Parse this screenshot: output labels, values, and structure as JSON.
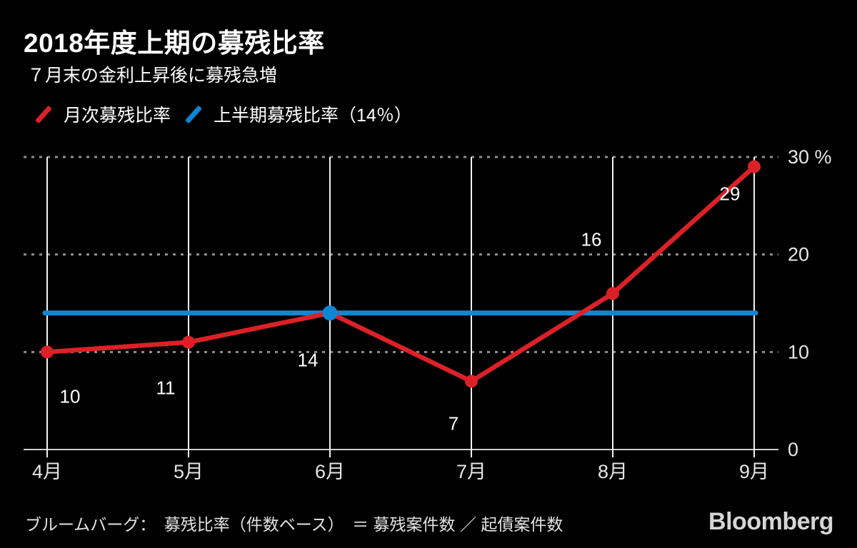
{
  "chart_data": {
    "type": "line",
    "title": "2018年度上期の募残比率",
    "subtitle": "７月末の金利上昇後に募残急増",
    "categories": [
      "4月",
      "5月",
      "6月",
      "7月",
      "8月",
      "9月"
    ],
    "series": [
      {
        "name": "月次募残比率",
        "type": "line",
        "color": "#db2127",
        "values": [
          10,
          11,
          14,
          7,
          16,
          29
        ],
        "point_labels": [
          "10",
          "11",
          "14",
          "7",
          "16",
          "29"
        ],
        "label_offsets": [
          [
            32,
            62
          ],
          [
            -32,
            64
          ],
          [
            -31,
            66
          ],
          [
            -25,
            59
          ],
          [
            -30,
            -76
          ],
          [
            -34,
            38
          ]
        ]
      },
      {
        "name": "上半期募残比率（14％）",
        "type": "reference-line",
        "color": "#0f86d4",
        "value": 14,
        "marker_category_index": 2
      }
    ],
    "legend": [
      {
        "label": "月次募残比率",
        "color": "#db2127"
      },
      {
        "label": "上半期募残比率（14％）",
        "color": "#0f86d4"
      }
    ],
    "ylim": [
      0,
      30
    ],
    "yticks": [
      0,
      10,
      20,
      30
    ],
    "ytick_labels": [
      "0",
      "10",
      "20",
      "30 %"
    ],
    "grid": {
      "horizontal": "dotted",
      "vertical": "solid"
    },
    "legend_position": "top-left",
    "unit": "%"
  },
  "footer": {
    "source": "ブルームバーグ：　募残比率（件数ベース）　＝ 募残案件数 ／ 起債案件数",
    "brand": "Bloomberg"
  }
}
